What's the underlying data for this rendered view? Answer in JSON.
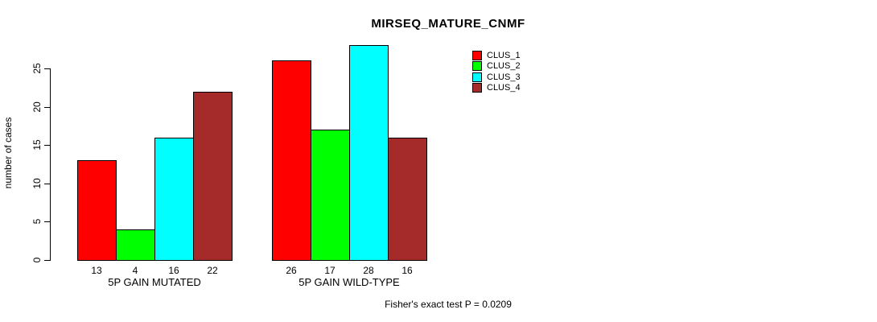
{
  "title": "MIRSEQ_MATURE_CNMF",
  "chart_data": {
    "type": "bar",
    "title": "MIRSEQ_MATURE_CNMF",
    "categories": [
      "5P GAIN MUTATED",
      "5P GAIN WILD-TYPE"
    ],
    "series": [
      {
        "name": "CLUS_1",
        "color": "#FF0000",
        "values": [
          13,
          26
        ]
      },
      {
        "name": "CLUS_2",
        "color": "#00FF00",
        "values": [
          4,
          17
        ]
      },
      {
        "name": "CLUS_3",
        "color": "#00FFFF",
        "values": [
          16,
          28
        ]
      },
      {
        "name": "CLUS_4",
        "color": "#A52A2A",
        "values": [
          22,
          16
        ]
      }
    ],
    "xlabel": "",
    "ylabel": "number of cases",
    "yticks": [
      0,
      5,
      10,
      15,
      20,
      25
    ],
    "ylim": [
      0,
      28.5
    ],
    "grid": false,
    "legend_position": "top-right",
    "bar_value_labels": true,
    "annotation": "Fisher's exact test P = 0.0209"
  }
}
